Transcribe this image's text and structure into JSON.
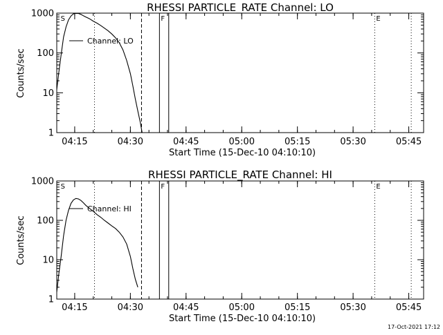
{
  "chart_data": [
    {
      "type": "line",
      "title": "RHESSI PARTICLE_RATE Channel: LO",
      "xlabel": "Start Time (15-Dec-10 04:10:10)",
      "ylabel": "Counts/sec",
      "yscale": "log",
      "xlim": [
        "04:10:10",
        "05:49:00"
      ],
      "ylim": [
        1,
        1000
      ],
      "xticks": [
        "04:15",
        "04:30",
        "04:45",
        "05:00",
        "05:15",
        "05:30",
        "05:45"
      ],
      "yticks": [
        "1",
        "10",
        "100",
        "1000"
      ],
      "legend_placement": "top-left",
      "grid": false,
      "series": [
        {
          "name": "Channel: LO",
          "x": [
            "04:10:10",
            "04:10:40",
            "04:11:20",
            "04:12:00",
            "04:12:40",
            "04:13:20",
            "04:14:00",
            "04:14:40",
            "04:15:20",
            "04:16:00",
            "04:16:40",
            "04:17:20",
            "04:18:00",
            "04:19:00",
            "04:20:00",
            "04:21:00",
            "04:22:00",
            "04:23:00",
            "04:24:00",
            "04:25:00",
            "04:26:00",
            "04:27:00",
            "04:28:00",
            "04:29:00",
            "04:30:00",
            "04:30:40",
            "04:31:20",
            "04:32:00",
            "04:32:40",
            "04:33:10"
          ],
          "values": [
            12,
            30,
            90,
            250,
            450,
            680,
            850,
            960,
            990,
            980,
            930,
            860,
            800,
            720,
            630,
            560,
            490,
            420,
            360,
            300,
            240,
            180,
            120,
            65,
            30,
            15,
            7,
            3.5,
            1.8,
            1
          ]
        }
      ],
      "markers": [
        {
          "x": "04:10:50",
          "style": "vertical-label",
          "label": "S"
        },
        {
          "x": "04:20:20",
          "style": "dotted"
        },
        {
          "x": "04:33:00",
          "style": "dashed"
        },
        {
          "x": "04:37:50",
          "style": "solid",
          "label": "F"
        },
        {
          "x": "04:40:20",
          "style": "solid"
        },
        {
          "x": "05:35:50",
          "style": "dotted",
          "label": "E"
        },
        {
          "x": "05:45:40",
          "style": "dotted"
        }
      ]
    },
    {
      "type": "line",
      "title": "RHESSI PARTICLE_RATE Channel: HI",
      "xlabel": "Start Time (15-Dec-10 04:10:10)",
      "ylabel": "Counts/sec",
      "yscale": "log",
      "xlim": [
        "04:10:10",
        "05:49:00"
      ],
      "ylim": [
        1,
        1000
      ],
      "xticks": [
        "04:15",
        "04:30",
        "04:45",
        "05:00",
        "05:15",
        "05:30",
        "05:45"
      ],
      "yticks": [
        "1",
        "10",
        "100",
        "1000"
      ],
      "legend_placement": "top-left",
      "grid": false,
      "series": [
        {
          "name": "Channel: HI",
          "x": [
            "04:10:10",
            "04:10:40",
            "04:11:20",
            "04:12:00",
            "04:12:40",
            "04:13:20",
            "04:14:00",
            "04:14:40",
            "04:15:20",
            "04:16:00",
            "04:16:40",
            "04:17:20",
            "04:18:00",
            "04:19:00",
            "04:20:00",
            "04:21:00",
            "04:22:00",
            "04:23:00",
            "04:24:00",
            "04:25:00",
            "04:26:00",
            "04:27:00",
            "04:28:00",
            "04:29:00",
            "04:30:00",
            "04:30:40",
            "04:31:20",
            "04:32:00"
          ],
          "values": [
            1.5,
            4,
            12,
            40,
            100,
            180,
            270,
            330,
            360,
            350,
            320,
            280,
            240,
            200,
            170,
            140,
            120,
            100,
            85,
            72,
            62,
            50,
            38,
            25,
            12,
            6,
            3.2,
            2
          ]
        }
      ],
      "markers": [
        {
          "x": "04:10:50",
          "style": "vertical-label",
          "label": "S"
        },
        {
          "x": "04:20:20",
          "style": "dotted"
        },
        {
          "x": "04:33:00",
          "style": "dashed"
        },
        {
          "x": "04:37:50",
          "style": "solid",
          "label": "F"
        },
        {
          "x": "04:40:20",
          "style": "solid"
        },
        {
          "x": "05:35:50",
          "style": "dotted",
          "label": "E"
        },
        {
          "x": "05:45:40",
          "style": "dotted"
        }
      ]
    }
  ],
  "footer": {
    "timestamp": "17-Oct-2021 17:12"
  }
}
